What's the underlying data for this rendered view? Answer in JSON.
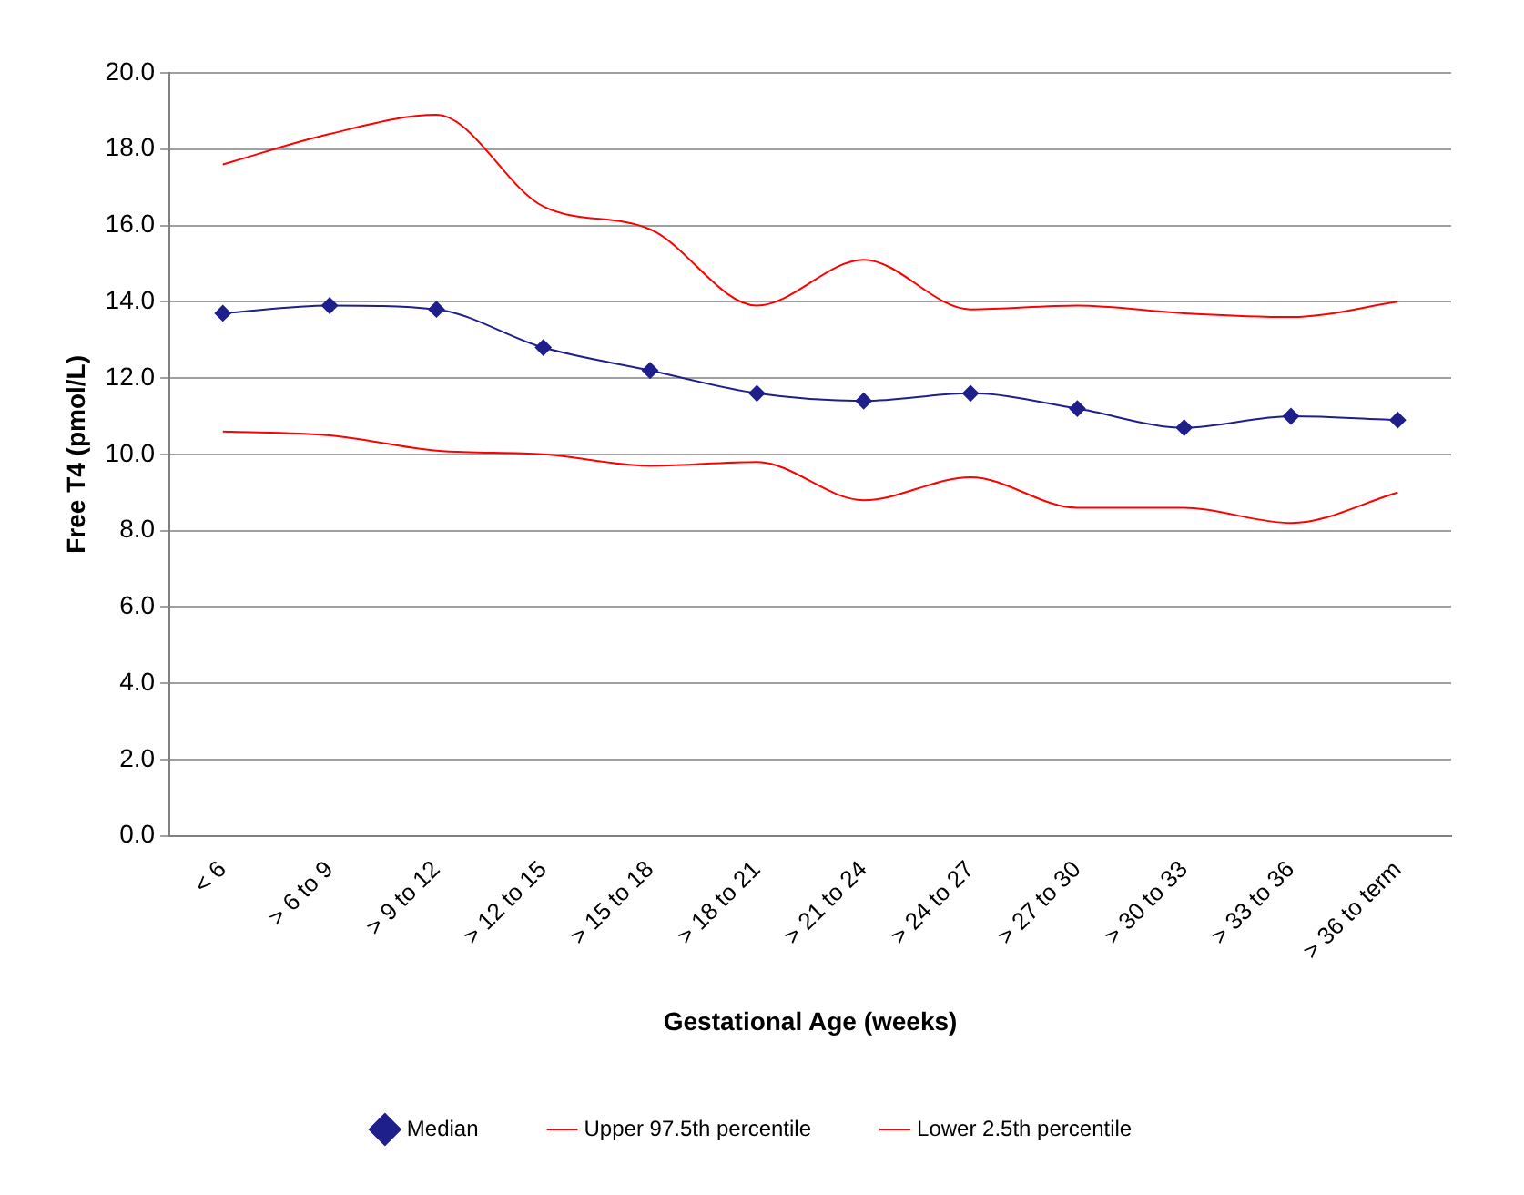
{
  "chart_data": {
    "type": "line",
    "xlabel": "Gestational Age (weeks)",
    "ylabel": "Free T4 (pmol/L)",
    "categories": [
      "< 6",
      "> 6 to 9",
      "> 9 to 12",
      "> 12 to 15",
      "> 15 to 18",
      "> 18 to 21",
      "> 21 to 24",
      "> 24 to 27",
      "> 27 to 30",
      "> 30 to 33",
      "> 33 to 36",
      "> 36 to term"
    ],
    "series": [
      {
        "name": "Median",
        "color": "#1f1f8c",
        "marker": "diamond",
        "values": [
          13.7,
          13.9,
          13.8,
          12.8,
          12.2,
          11.6,
          11.4,
          11.6,
          11.2,
          10.7,
          11.0,
          10.9
        ]
      },
      {
        "name": "Upper 97.5th percentile",
        "color": "#ff0000",
        "marker": "none",
        "values": [
          17.6,
          18.4,
          18.9,
          16.5,
          15.9,
          13.9,
          15.1,
          13.8,
          13.9,
          13.7,
          13.6,
          14.0
        ]
      },
      {
        "name": "Lower 2.5th percentile",
        "color": "#ff0000",
        "marker": "none",
        "values": [
          10.6,
          10.5,
          10.1,
          10.0,
          9.7,
          9.8,
          8.8,
          9.4,
          8.6,
          8.6,
          8.2,
          9.0
        ]
      }
    ],
    "ylim": [
      0,
      20
    ],
    "yticks": [
      {
        "value": 0,
        "label": "0.0"
      },
      {
        "value": 2,
        "label": "2.0"
      },
      {
        "value": 4,
        "label": "4.0"
      },
      {
        "value": 6,
        "label": "6.0"
      },
      {
        "value": 8,
        "label": "8.0"
      },
      {
        "value": 10,
        "label": "10.0"
      },
      {
        "value": 12,
        "label": "12.0"
      },
      {
        "value": 14,
        "label": "14.0"
      },
      {
        "value": 16,
        "label": "16.0"
      },
      {
        "value": 18,
        "label": "18.0"
      },
      {
        "value": 20,
        "label": "20.0"
      }
    ],
    "grid": "y",
    "legend": "bottom",
    "line_style": "solid"
  }
}
